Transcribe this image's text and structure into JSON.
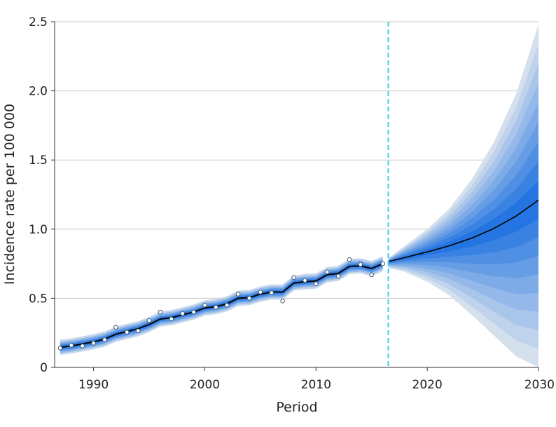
{
  "chart_data": {
    "type": "line",
    "title": "",
    "xlabel": "Period",
    "ylabel": "Incidence rate per 100 000",
    "xlim": [
      1986.5,
      2030
    ],
    "ylim": [
      0,
      2.5
    ],
    "x_ticks": [
      1990,
      2000,
      2010,
      2020,
      2030
    ],
    "x_tick_labels": [
      "1990",
      "2000",
      "2010",
      "2020",
      "2030"
    ],
    "y_ticks": [
      0,
      0.5,
      1.0,
      1.5,
      2.0,
      2.5
    ],
    "y_tick_labels": [
      "0",
      "0.5",
      "1.0",
      "1.5",
      "2.0",
      "2.5"
    ],
    "grid": "horizontal",
    "forecast_start": 2016.5,
    "colors": {
      "observed_line": "#000000",
      "forecast_line": "#000000",
      "divider": "#33d6e6",
      "band_dark": "#1a6fe0",
      "band_light": "#dfe6ee",
      "point_fill": "#ffffff",
      "point_stroke": "#3d5a6e"
    },
    "observed_points": {
      "x": [
        1987,
        1988,
        1989,
        1990,
        1991,
        1992,
        1993,
        1994,
        1995,
        1996,
        1997,
        1998,
        1999,
        2000,
        2001,
        2002,
        2003,
        2004,
        2005,
        2006,
        2007,
        2008,
        2009,
        2010,
        2011,
        2012,
        2013,
        2014,
        2015,
        2016
      ],
      "y": [
        0.14,
        0.16,
        0.155,
        0.175,
        0.2,
        0.29,
        0.255,
        0.265,
        0.34,
        0.4,
        0.35,
        0.39,
        0.4,
        0.45,
        0.435,
        0.45,
        0.53,
        0.5,
        0.545,
        0.54,
        0.48,
        0.65,
        0.63,
        0.605,
        0.69,
        0.66,
        0.78,
        0.745,
        0.67,
        0.75
      ]
    },
    "fitted_line": {
      "x": [
        1987,
        1988,
        1989,
        1990,
        1991,
        1992,
        1993,
        1994,
        1995,
        1996,
        1997,
        1998,
        1999,
        2000,
        2001,
        2002,
        2003,
        2004,
        2005,
        2006,
        2007,
        2008,
        2009,
        2010,
        2011,
        2012,
        2013,
        2014,
        2015,
        2016
      ],
      "y": [
        0.145,
        0.155,
        0.17,
        0.185,
        0.205,
        0.24,
        0.26,
        0.28,
        0.31,
        0.35,
        0.36,
        0.38,
        0.4,
        0.43,
        0.44,
        0.46,
        0.5,
        0.505,
        0.53,
        0.545,
        0.545,
        0.61,
        0.62,
        0.625,
        0.67,
        0.68,
        0.73,
        0.735,
        0.715,
        0.75
      ]
    },
    "forecast_line": {
      "x": [
        2016.5,
        2018,
        2020,
        2022,
        2024,
        2026,
        2028,
        2030
      ],
      "y": [
        0.765,
        0.795,
        0.835,
        0.88,
        0.935,
        1.005,
        1.095,
        1.21
      ]
    },
    "forecast_outer_band": {
      "x": [
        2016.5,
        2018,
        2020,
        2022,
        2024,
        2026,
        2028,
        2030
      ],
      "lower": [
        0.72,
        0.69,
        0.62,
        0.52,
        0.38,
        0.23,
        0.08,
        0.0
      ],
      "upper": [
        0.79,
        0.88,
        1.0,
        1.15,
        1.36,
        1.63,
        1.98,
        2.48
      ]
    }
  }
}
